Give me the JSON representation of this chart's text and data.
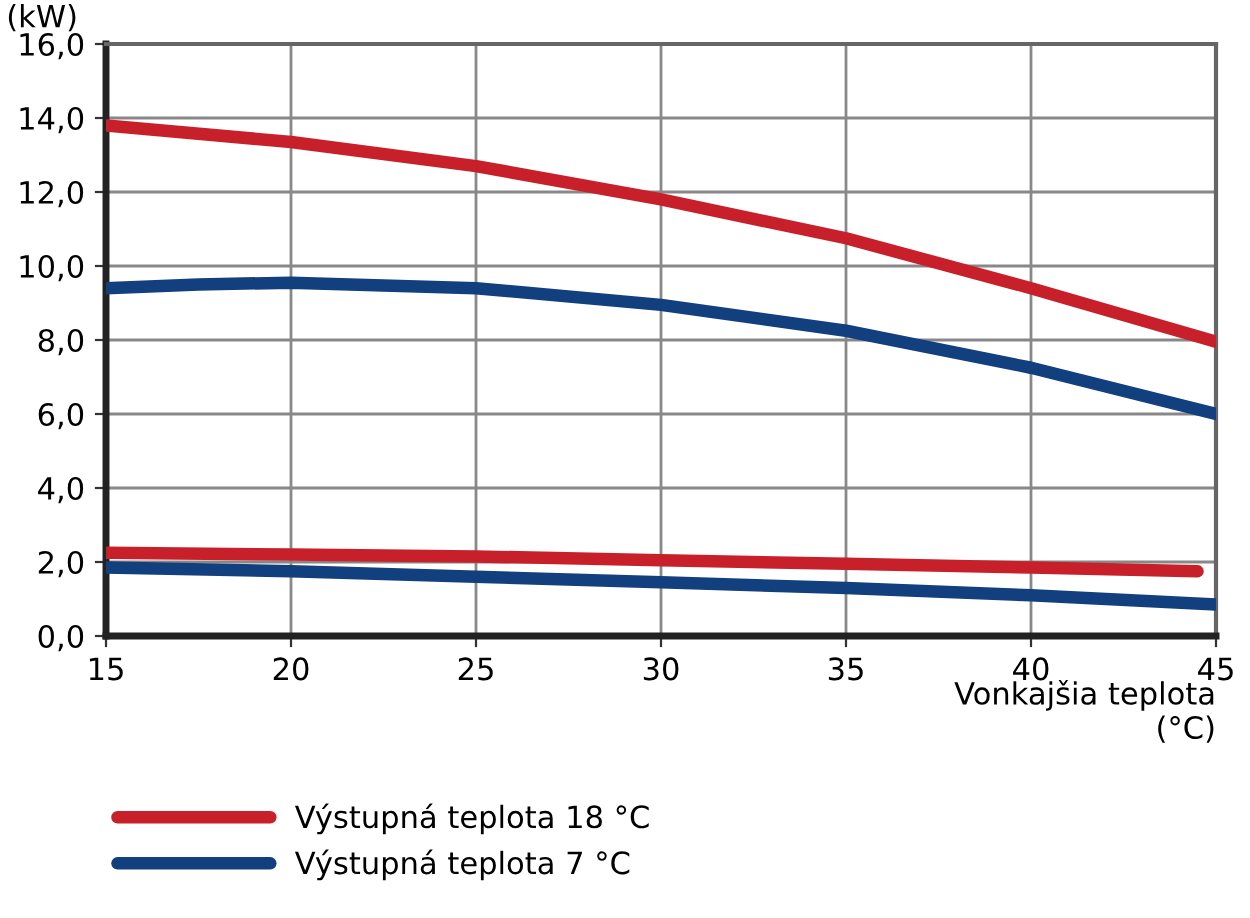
{
  "chart_data": {
    "type": "line",
    "ylabel": "(kW)",
    "xlabel": "Vonkajšia teplota\n(°C)",
    "xlim": [
      15,
      45
    ],
    "xticks": [
      15,
      20,
      25,
      30,
      35,
      40,
      45
    ],
    "ylim": [
      0,
      16
    ],
    "yticks": [
      {
        "value": 0,
        "label": "0,0"
      },
      {
        "value": 2,
        "label": "2,0"
      },
      {
        "value": 4,
        "label": "4,0"
      },
      {
        "value": 6,
        "label": "6,0"
      },
      {
        "value": 8,
        "label": "8,0"
      },
      {
        "value": 10,
        "label": "10,0"
      },
      {
        "value": 12,
        "label": "12,0"
      },
      {
        "value": 14,
        "label": "14,0"
      },
      {
        "value": 16,
        "label": "16,0"
      }
    ],
    "grid": true,
    "legend": "bottom",
    "marker": "none",
    "line_style": "solid",
    "series": [
      {
        "name": "Výstupná teplota 18 °C",
        "color": "#c8202a",
        "x": [
          15,
          20,
          25,
          30,
          35,
          40,
          45
        ],
        "values": [
          13.8,
          13.35,
          12.7,
          11.8,
          10.75,
          9.4,
          7.95
        ]
      },
      {
        "name": "Výstupná teplota 7 °C",
        "color": "#123f7d",
        "x": [
          15,
          17.5,
          20,
          25,
          30,
          35,
          40,
          45
        ],
        "values": [
          9.4,
          9.5,
          9.55,
          9.4,
          8.95,
          8.25,
          7.25,
          6.0
        ]
      },
      {
        "color": "#c8202a",
        "x": [
          15,
          20,
          25,
          30,
          35,
          40,
          44.5
        ],
        "values": [
          2.25,
          2.2,
          2.15,
          2.05,
          1.95,
          1.85,
          1.75
        ]
      },
      {
        "color": "#123f7d",
        "x": [
          15,
          20,
          25,
          30,
          35,
          40,
          45
        ],
        "values": [
          1.85,
          1.75,
          1.6,
          1.45,
          1.3,
          1.1,
          0.85
        ]
      }
    ]
  }
}
